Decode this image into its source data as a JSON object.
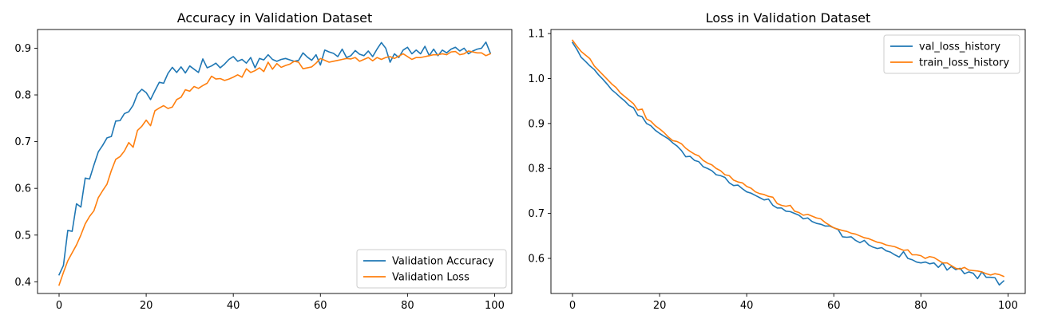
{
  "chart_data": [
    {
      "type": "line",
      "title": "Accuracy in Validation Dataset",
      "xlabel": "",
      "ylabel": "",
      "xlim": [
        -4.95,
        103.95
      ],
      "ylim": [
        0.375,
        0.94
      ],
      "xticks": [
        0,
        20,
        40,
        60,
        80,
        100
      ],
      "yticks": [
        0.4,
        0.5,
        0.6,
        0.7,
        0.8,
        0.9
      ],
      "ytick_labels": [
        "0.4",
        "0.5",
        "0.6",
        "0.7",
        "0.8",
        "0.9"
      ],
      "legend": "lower-right",
      "grid": false,
      "series": [
        {
          "name": "Validation Accuracy",
          "color": "#1f77b4",
          "values": [
            0.415,
            0.435,
            0.51,
            0.508,
            0.567,
            0.56,
            0.622,
            0.62,
            0.65,
            0.678,
            0.692,
            0.708,
            0.711,
            0.744,
            0.745,
            0.76,
            0.764,
            0.778,
            0.802,
            0.812,
            0.805,
            0.79,
            0.809,
            0.827,
            0.825,
            0.846,
            0.859,
            0.848,
            0.86,
            0.847,
            0.862,
            0.855,
            0.848,
            0.877,
            0.858,
            0.862,
            0.868,
            0.858,
            0.866,
            0.876,
            0.882,
            0.872,
            0.876,
            0.868,
            0.88,
            0.858,
            0.878,
            0.875,
            0.886,
            0.876,
            0.872,
            0.876,
            0.878,
            0.875,
            0.872,
            0.874,
            0.89,
            0.881,
            0.874,
            0.886,
            0.864,
            0.896,
            0.892,
            0.889,
            0.882,
            0.898,
            0.88,
            0.884,
            0.895,
            0.887,
            0.884,
            0.894,
            0.882,
            0.898,
            0.912,
            0.9,
            0.87,
            0.888,
            0.88,
            0.896,
            0.902,
            0.888,
            0.896,
            0.888,
            0.904,
            0.884,
            0.898,
            0.884,
            0.896,
            0.89,
            0.898,
            0.902,
            0.894,
            0.9,
            0.888,
            0.894,
            0.898,
            0.9,
            0.913,
            0.89
          ]
        },
        {
          "name": "Validation Loss",
          "color": "#ff7f0e",
          "values": [
            0.393,
            0.42,
            0.445,
            0.462,
            0.479,
            0.5,
            0.524,
            0.54,
            0.552,
            0.58,
            0.595,
            0.609,
            0.638,
            0.662,
            0.668,
            0.68,
            0.698,
            0.688,
            0.724,
            0.733,
            0.746,
            0.734,
            0.766,
            0.772,
            0.777,
            0.771,
            0.774,
            0.79,
            0.795,
            0.811,
            0.808,
            0.818,
            0.814,
            0.82,
            0.825,
            0.84,
            0.834,
            0.835,
            0.831,
            0.834,
            0.838,
            0.843,
            0.838,
            0.856,
            0.848,
            0.852,
            0.858,
            0.85,
            0.87,
            0.855,
            0.867,
            0.859,
            0.863,
            0.866,
            0.872,
            0.87,
            0.856,
            0.858,
            0.86,
            0.868,
            0.878,
            0.874,
            0.87,
            0.872,
            0.874,
            0.876,
            0.878,
            0.877,
            0.88,
            0.872,
            0.876,
            0.88,
            0.873,
            0.88,
            0.876,
            0.88,
            0.882,
            0.878,
            0.883,
            0.888,
            0.882,
            0.876,
            0.88,
            0.88,
            0.882,
            0.884,
            0.886,
            0.886,
            0.888,
            0.886,
            0.892,
            0.893,
            0.886,
            0.888,
            0.894,
            0.892,
            0.89,
            0.89,
            0.884,
            0.888
          ]
        }
      ]
    },
    {
      "type": "line",
      "title": "Loss in Validation Dataset",
      "xlabel": "",
      "ylabel": "",
      "xlim": [
        -4.95,
        103.95
      ],
      "ylim": [
        0.522,
        1.109
      ],
      "xticks": [
        0,
        20,
        40,
        60,
        80,
        100
      ],
      "yticks": [
        0.6,
        0.7,
        0.8,
        0.9,
        1.0,
        1.1
      ],
      "ytick_labels": [
        "0.6",
        "0.7",
        "0.8",
        "0.9",
        "1.0",
        "1.1"
      ],
      "legend": "top-right",
      "grid": false,
      "series": [
        {
          "name": "val_loss_history",
          "color": "#1f77b4",
          "values": [
            1.08,
            1.065,
            1.047,
            1.038,
            1.028,
            1.02,
            1.008,
            0.998,
            0.987,
            0.975,
            0.967,
            0.958,
            0.95,
            0.94,
            0.935,
            0.918,
            0.915,
            0.9,
            0.895,
            0.885,
            0.878,
            0.872,
            0.866,
            0.857,
            0.85,
            0.84,
            0.826,
            0.827,
            0.818,
            0.815,
            0.804,
            0.8,
            0.795,
            0.786,
            0.784,
            0.78,
            0.768,
            0.762,
            0.763,
            0.755,
            0.748,
            0.745,
            0.74,
            0.735,
            0.73,
            0.732,
            0.718,
            0.712,
            0.712,
            0.705,
            0.704,
            0.7,
            0.696,
            0.688,
            0.69,
            0.682,
            0.678,
            0.676,
            0.672,
            0.672,
            0.668,
            0.664,
            0.648,
            0.647,
            0.648,
            0.64,
            0.635,
            0.64,
            0.63,
            0.625,
            0.622,
            0.624,
            0.617,
            0.614,
            0.608,
            0.603,
            0.615,
            0.6,
            0.597,
            0.592,
            0.59,
            0.592,
            0.588,
            0.59,
            0.58,
            0.59,
            0.574,
            0.582,
            0.575,
            0.578,
            0.566,
            0.57,
            0.567,
            0.555,
            0.57,
            0.558,
            0.558,
            0.557,
            0.541,
            0.55
          ]
        },
        {
          "name": "train_loss_history",
          "color": "#ff7f0e",
          "values": [
            1.085,
            1.072,
            1.06,
            1.052,
            1.044,
            1.028,
            1.018,
            1.008,
            0.998,
            0.988,
            0.98,
            0.968,
            0.96,
            0.952,
            0.944,
            0.93,
            0.932,
            0.91,
            0.905,
            0.895,
            0.888,
            0.88,
            0.87,
            0.862,
            0.86,
            0.855,
            0.845,
            0.838,
            0.832,
            0.828,
            0.818,
            0.812,
            0.808,
            0.8,
            0.795,
            0.786,
            0.784,
            0.774,
            0.77,
            0.768,
            0.76,
            0.756,
            0.748,
            0.744,
            0.742,
            0.738,
            0.736,
            0.722,
            0.718,
            0.716,
            0.718,
            0.705,
            0.702,
            0.696,
            0.698,
            0.694,
            0.69,
            0.688,
            0.68,
            0.674,
            0.668,
            0.665,
            0.662,
            0.66,
            0.656,
            0.654,
            0.65,
            0.646,
            0.644,
            0.64,
            0.636,
            0.634,
            0.63,
            0.628,
            0.626,
            0.622,
            0.618,
            0.619,
            0.608,
            0.608,
            0.606,
            0.6,
            0.604,
            0.602,
            0.596,
            0.59,
            0.59,
            0.584,
            0.578,
            0.576,
            0.58,
            0.574,
            0.573,
            0.572,
            0.57,
            0.566,
            0.563,
            0.566,
            0.564,
            0.56
          ]
        }
      ]
    }
  ]
}
